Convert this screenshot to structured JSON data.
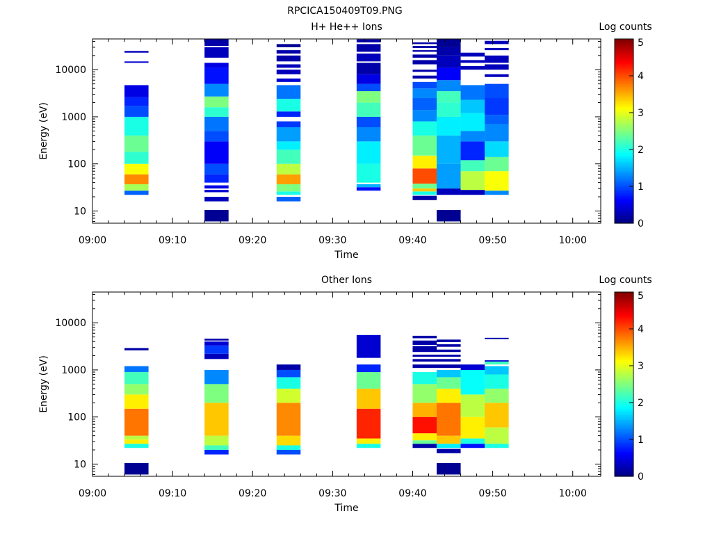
{
  "figure_title": "RPCICA150409T09.PNG",
  "colors": {
    "jet": [
      "#00007f",
      "#0000ff",
      "#007fff",
      "#00ffff",
      "#7fff7f",
      "#ffff00",
      "#ff7f00",
      "#ff0000",
      "#7f0000"
    ]
  },
  "chart_data": [
    {
      "type": "heatmap",
      "title": "H+ He++ Ions",
      "xlabel": "Time",
      "ylabel": "Energy (eV)",
      "y_scale": "log",
      "ylim": [
        5.5,
        45000
      ],
      "xlim_minutes": [
        0,
        63.5
      ],
      "x_ticks": [
        "09:00",
        "09:10",
        "09:20",
        "09:30",
        "09:40",
        "09:50",
        "10:00"
      ],
      "y_ticks": [
        "10",
        "100",
        "1000",
        "10000"
      ],
      "colorbar_label": "Log counts",
      "colorbar_ticks": [
        "0",
        "1",
        "2",
        "3",
        "4",
        "5"
      ],
      "colorbar_range": [
        0,
        5
      ],
      "columns": [
        {
          "start": "09:04",
          "end": "09:07",
          "segments": [
            [
              22,
              27,
              1.1
            ],
            [
              27,
              37,
              2.7
            ],
            [
              37,
              60,
              3.7
            ],
            [
              60,
              100,
              3.1
            ],
            [
              100,
              180,
              2.1
            ],
            [
              180,
              400,
              2.4
            ],
            [
              400,
              1000,
              2.0
            ],
            [
              1000,
              1700,
              1.0
            ],
            [
              1700,
              2600,
              0.8
            ],
            [
              2600,
              4700,
              0.5
            ],
            [
              14000,
              15000,
              0.4
            ],
            [
              23000,
              25000,
              0.3
            ]
          ]
        },
        {
          "start": "09:14",
          "end": "09:17",
          "segments": [
            [
              6,
              10.5,
              0.1
            ],
            [
              16,
              20,
              0.3
            ],
            [
              25,
              28,
              0.4
            ],
            [
              30,
              35,
              0.5
            ],
            [
              40,
              60,
              0.8
            ],
            [
              60,
              100,
              1.0
            ],
            [
              100,
              300,
              0.6
            ],
            [
              300,
              500,
              1.0
            ],
            [
              500,
              1000,
              1.2
            ],
            [
              1000,
              1600,
              2.1
            ],
            [
              1600,
              2700,
              2.5
            ],
            [
              2700,
              5000,
              1.3
            ],
            [
              5000,
              11000,
              0.7
            ],
            [
              11000,
              14000,
              0.5
            ],
            [
              18000,
              30000,
              0.3
            ],
            [
              32000,
              45000,
              0.2
            ]
          ]
        },
        {
          "start": "09:23",
          "end": "09:26",
          "segments": [
            [
              16,
              20,
              1.1
            ],
            [
              22,
              26,
              2.0
            ],
            [
              26,
              37,
              2.5
            ],
            [
              37,
              60,
              3.6
            ],
            [
              60,
              100,
              2.8
            ],
            [
              100,
              200,
              2.2
            ],
            [
              200,
              300,
              1.8
            ],
            [
              300,
              600,
              1.4
            ],
            [
              600,
              800,
              0.9
            ],
            [
              1000,
              1300,
              0.8
            ],
            [
              1300,
              2400,
              2.0
            ],
            [
              2400,
              4700,
              1.2
            ],
            [
              5500,
              6500,
              0.4
            ],
            [
              8000,
              10000,
              0.3
            ],
            [
              11000,
              13000,
              0.3
            ],
            [
              15000,
              20000,
              0.2
            ],
            [
              22000,
              26000,
              0.2
            ],
            [
              30000,
              35000,
              0.1
            ]
          ]
        },
        {
          "start": "09:33",
          "end": "09:36",
          "segments": [
            [
              27,
              32,
              0.7
            ],
            [
              32,
              37,
              1.5
            ],
            [
              40,
              100,
              2.0
            ],
            [
              100,
              300,
              1.8
            ],
            [
              300,
              600,
              1.3
            ],
            [
              600,
              1000,
              1.0
            ],
            [
              1000,
              2000,
              2.2
            ],
            [
              2000,
              3500,
              2.5
            ],
            [
              3500,
              5000,
              1.0
            ],
            [
              5000,
              8000,
              0.5
            ],
            [
              8000,
              14000,
              0.2
            ],
            [
              15000,
              22000,
              0.3
            ],
            [
              24000,
              35000,
              0.2
            ],
            [
              38000,
              44000,
              0.2
            ]
          ]
        },
        {
          "start": "09:40",
          "end": "09:43",
          "segments": [
            [
              17,
              21,
              0.2
            ],
            [
              22,
              26,
              2.0
            ],
            [
              26,
              30,
              3.4
            ],
            [
              30,
              38,
              2.4
            ],
            [
              38,
              80,
              4.0
            ],
            [
              80,
              150,
              3.2
            ],
            [
              150,
              400,
              2.4
            ],
            [
              400,
              800,
              2.0
            ],
            [
              800,
              1400,
              1.3
            ],
            [
              1400,
              2500,
              1.1
            ],
            [
              2500,
              4000,
              1.3
            ],
            [
              4000,
              5500,
              1.0
            ],
            [
              6500,
              7500,
              0.2
            ],
            [
              9000,
              10000,
              0.2
            ],
            [
              13000,
              16000,
              0.2
            ],
            [
              18000,
              21000,
              0.2
            ],
            [
              24000,
              26000,
              0.2
            ],
            [
              29000,
              32000,
              0.2
            ],
            [
              35000,
              38000,
              0.2
            ]
          ]
        },
        {
          "start": "09:43",
          "end": "09:46",
          "segments": [
            [
              6,
              10.5,
              0.1
            ],
            [
              22,
              30,
              0.3
            ],
            [
              30,
              100,
              1.4
            ],
            [
              100,
              400,
              1.5
            ],
            [
              400,
              1000,
              1.8
            ],
            [
              1000,
              2000,
              2.1
            ],
            [
              2000,
              3500,
              2.2
            ],
            [
              3500,
              6000,
              1.3
            ],
            [
              6000,
              11000,
              0.6
            ],
            [
              11000,
              20000,
              0.3
            ],
            [
              20000,
              30000,
              0.2
            ],
            [
              30000,
              45000,
              0.1
            ]
          ]
        },
        {
          "start": "09:46",
          "end": "09:49",
          "segments": [
            [
              22,
              28,
              0.3
            ],
            [
              28,
              70,
              2.8
            ],
            [
              70,
              120,
              2.2
            ],
            [
              120,
              300,
              0.8
            ],
            [
              300,
              500,
              1.3
            ],
            [
              500,
              1200,
              1.8
            ],
            [
              1200,
              2300,
              1.6
            ],
            [
              2300,
              4700,
              1.2
            ],
            [
              10000,
              12000,
              0.3
            ],
            [
              14000,
              16000,
              0.3
            ],
            [
              19000,
              23000,
              0.3
            ]
          ]
        },
        {
          "start": "09:49",
          "end": "09:52",
          "segments": [
            [
              22,
              27,
              1.3
            ],
            [
              27,
              70,
              3.1
            ],
            [
              70,
              140,
              2.4
            ],
            [
              140,
              300,
              1.7
            ],
            [
              300,
              700,
              1.3
            ],
            [
              700,
              1100,
              1.1
            ],
            [
              1100,
              2500,
              0.9
            ],
            [
              2500,
              5000,
              1.0
            ],
            [
              7000,
              8000,
              0.3
            ],
            [
              10000,
              13000,
              0.3
            ],
            [
              14000,
              20000,
              0.3
            ],
            [
              26000,
              29000,
              0.3
            ],
            [
              35000,
              41000,
              0.3
            ]
          ]
        }
      ]
    },
    {
      "type": "heatmap",
      "title": "Other Ions",
      "xlabel": "Time",
      "ylabel": "Energy (eV)",
      "y_scale": "log",
      "ylim": [
        5.5,
        45000
      ],
      "xlim_minutes": [
        0,
        63.5
      ],
      "x_ticks": [
        "09:00",
        "09:10",
        "09:20",
        "09:30",
        "09:40",
        "09:50",
        "10:00"
      ],
      "y_ticks": [
        "10",
        "100",
        "1000",
        "10000"
      ],
      "colorbar_label": "Log counts",
      "colorbar_ticks": [
        "0",
        "1",
        "2",
        "3",
        "4",
        "5"
      ],
      "colorbar_range": [
        0,
        5
      ],
      "columns": [
        {
          "start": "09:04",
          "end": "09:07",
          "segments": [
            [
              6,
              10.5,
              0.1
            ],
            [
              22,
              27,
              2.0
            ],
            [
              27,
              33,
              3.2
            ],
            [
              33,
              40,
              2.8
            ],
            [
              40,
              150,
              3.8
            ],
            [
              150,
              300,
              3.2
            ],
            [
              300,
              500,
              2.6
            ],
            [
              500,
              900,
              2.2
            ],
            [
              900,
              1200,
              1.2
            ],
            [
              2600,
              2900,
              0.2
            ]
          ]
        },
        {
          "start": "09:14",
          "end": "09:17",
          "segments": [
            [
              16,
              20,
              0.8
            ],
            [
              20,
              25,
              2.2
            ],
            [
              25,
              40,
              2.8
            ],
            [
              40,
              200,
              3.4
            ],
            [
              200,
              500,
              2.5
            ],
            [
              500,
              1000,
              1.3
            ],
            [
              1700,
              2200,
              0.3
            ],
            [
              2200,
              3300,
              0.9
            ],
            [
              3300,
              4000,
              0.4
            ],
            [
              4200,
              4600,
              0.2
            ]
          ]
        },
        {
          "start": "09:23",
          "end": "09:26",
          "segments": [
            [
              16,
              20,
              1.0
            ],
            [
              20,
              25,
              2.0
            ],
            [
              25,
              40,
              3.3
            ],
            [
              40,
              200,
              3.7
            ],
            [
              200,
              400,
              2.9
            ],
            [
              400,
              700,
              2.0
            ],
            [
              700,
              1000,
              1.0
            ],
            [
              1000,
              1300,
              0.2
            ]
          ]
        },
        {
          "start": "09:33",
          "end": "09:36",
          "segments": [
            [
              22,
              27,
              2.0
            ],
            [
              27,
              35,
              3.2
            ],
            [
              35,
              150,
              4.2
            ],
            [
              150,
              400,
              3.4
            ],
            [
              400,
              900,
              2.4
            ],
            [
              900,
              1300,
              0.8
            ],
            [
              1800,
              5500,
              0.4
            ]
          ]
        },
        {
          "start": "09:40",
          "end": "09:43",
          "segments": [
            [
              22,
              27,
              0.2
            ],
            [
              27,
              32,
              2.4
            ],
            [
              32,
              45,
              3.2
            ],
            [
              45,
              100,
              4.3
            ],
            [
              100,
              200,
              3.5
            ],
            [
              200,
              500,
              2.6
            ],
            [
              500,
              900,
              2.0
            ],
            [
              1100,
              1300,
              0.2
            ],
            [
              1500,
              1700,
              0.2
            ],
            [
              1900,
              2100,
              0.2
            ],
            [
              2400,
              3200,
              0.2
            ],
            [
              3400,
              4200,
              0.2
            ],
            [
              4700,
              5300,
              0.2
            ]
          ]
        },
        {
          "start": "09:43",
          "end": "09:46",
          "segments": [
            [
              6,
              10.5,
              0.1
            ],
            [
              17,
              21,
              0.2
            ],
            [
              22,
              27,
              1.8
            ],
            [
              27,
              40,
              3.4
            ],
            [
              40,
              200,
              3.8
            ],
            [
              200,
              400,
              3.2
            ],
            [
              400,
              700,
              2.4
            ],
            [
              700,
              1000,
              1.6
            ],
            [
              1100,
              1300,
              0.2
            ],
            [
              1500,
              1700,
              0.2
            ],
            [
              1900,
              2100,
              0.2
            ],
            [
              2400,
              2700,
              0.2
            ],
            [
              3100,
              3500,
              0.2
            ],
            [
              3900,
              4400,
              0.2
            ]
          ]
        },
        {
          "start": "09:46",
          "end": "09:49",
          "segments": [
            [
              22,
              27,
              0.7
            ],
            [
              27,
              35,
              2.0
            ],
            [
              35,
              100,
              3.2
            ],
            [
              100,
              300,
              2.8
            ],
            [
              300,
              1000,
              1.9
            ],
            [
              1000,
              1300,
              0.4
            ]
          ]
        },
        {
          "start": "09:49",
          "end": "09:52",
          "segments": [
            [
              22,
              27,
              2.0
            ],
            [
              27,
              60,
              2.8
            ],
            [
              60,
              200,
              3.4
            ],
            [
              200,
              400,
              2.6
            ],
            [
              400,
              800,
              2.0
            ],
            [
              800,
              1200,
              1.6
            ],
            [
              1300,
              1500,
              2.2
            ],
            [
              1500,
              1600,
              0.4
            ],
            [
              4500,
              4800,
              0.2
            ]
          ]
        }
      ]
    }
  ]
}
